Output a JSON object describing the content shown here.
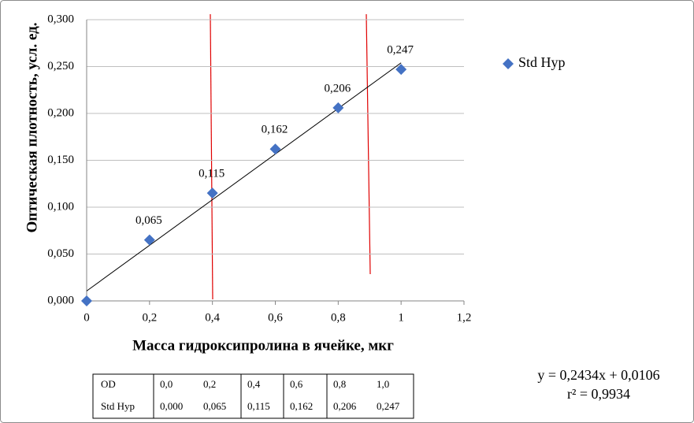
{
  "chart_data": {
    "type": "scatter",
    "y_label": "Оптическая плотность, усл. ед.",
    "x_label": "Масса гидроксипролина в ячейке, мкг",
    "x": [
      0,
      0.2,
      0.4,
      0.6,
      0.8,
      1
    ],
    "series": [
      {
        "name": "Std Hyp",
        "color": "#4472c4",
        "values": [
          0,
          0.065,
          0.115,
          0.162,
          0.206,
          0.247
        ],
        "value_labels": [
          null,
          "0,065",
          "0,115",
          "0,162",
          "0,206",
          "0,247"
        ]
      }
    ],
    "xlim": [
      0,
      1.2
    ],
    "xticks": [
      0,
      {
        "value": 0.2,
        "label": "0,2"
      },
      {
        "value": 0.4,
        "label": "0,4"
      },
      {
        "value": 0.6,
        "label": "0,6"
      },
      {
        "value": 0.8,
        "label": "0,8"
      },
      1,
      {
        "value": 1.2,
        "label": "1,2"
      }
    ],
    "ylim": [
      0,
      0.3
    ],
    "yticks": [
      {
        "value": 0,
        "label": "0,000"
      },
      {
        "value": 0.05,
        "label": "0,050"
      },
      {
        "value": 0.1,
        "label": "0,100"
      },
      {
        "value": 0.15,
        "label": "0,150"
      },
      {
        "value": 0.2,
        "label": "0,200"
      },
      {
        "value": 0.25,
        "label": "0,250"
      },
      {
        "value": 0.3,
        "label": "0,300"
      }
    ],
    "grid": true,
    "legend": "right",
    "trendline": {
      "slope": 0.2434,
      "intercept": 0.0106,
      "equation": "y = 0,2434x + 0,0106",
      "r2": "r² = 0,9934"
    }
  },
  "table": {
    "rows": [
      [
        "OD",
        "0,0",
        "0,2",
        "0,4",
        "0,6",
        "0,8",
        "1,0"
      ],
      [
        "Std Hyp",
        "0,000",
        "0,065",
        "0,115",
        "0,162",
        "0,206",
        "0,247"
      ]
    ]
  }
}
